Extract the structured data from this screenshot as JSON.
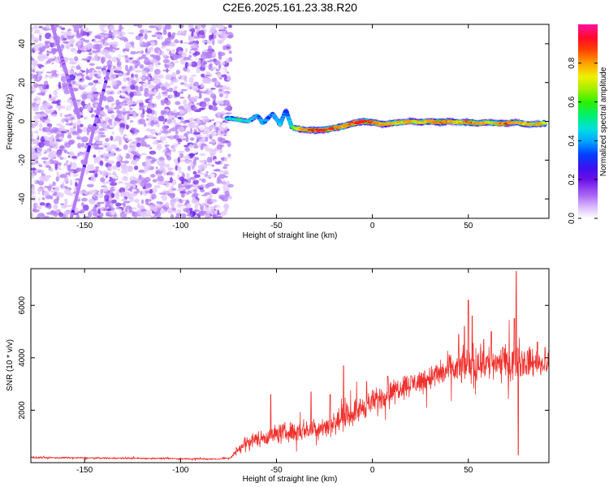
{
  "title": "C2E6.2025.161.23.38.R20",
  "colors": {
    "snr_line": "#f0302c",
    "background": "#ffffff",
    "axis": "#000000",
    "colormap": [
      "#ffffff",
      "#e0c6ff",
      "#b27cf6",
      "#7a2ce6",
      "#4b10e8",
      "#0a32ff",
      "#00b2ff",
      "#00e0d0",
      "#30f030",
      "#c8f000",
      "#ff9a00",
      "#ff2020",
      "#ff1090"
    ]
  },
  "chart_data": [
    {
      "type": "heatmap",
      "xlabel": "Height of straight line (km)",
      "ylabel": "Frequency (Hz)",
      "xlim": [
        -178,
        92
      ],
      "ylim": [
        -50,
        50
      ],
      "xticks": [
        -150,
        -100,
        -50,
        0,
        50
      ],
      "yticks": [
        -40,
        -20,
        0,
        20,
        40
      ],
      "colorbar": {
        "label": "Normalized spectral amplitude",
        "range": [
          0,
          1
        ],
        "ticks": [
          0.0,
          0.2,
          0.4,
          0.6,
          0.8
        ]
      },
      "noise_region": {
        "x_range": [
          -178,
          -74
        ],
        "y_range": [
          -50,
          50
        ],
        "amplitude": 0.12
      },
      "diagonal_streaks": [
        {
          "from": [
            -167,
            50
          ],
          "to": [
            -158,
            20
          ],
          "amplitude": 0.2
        },
        {
          "from": [
            -158,
            20
          ],
          "to": [
            -153,
            2
          ],
          "amplitude": 0.2
        },
        {
          "from": [
            -137,
            28
          ],
          "to": [
            -157,
            -50
          ],
          "amplitude": 0.22
        }
      ],
      "ridge": [
        [
          -76,
          1.5,
          0.55
        ],
        [
          -70,
          1.0,
          0.6
        ],
        [
          -65,
          0.0,
          0.55
        ],
        [
          -60,
          3.0,
          0.5
        ],
        [
          -57,
          -1.0,
          0.5
        ],
        [
          -52,
          4.0,
          0.45
        ],
        [
          -48,
          -1.5,
          0.55
        ],
        [
          -45,
          6.0,
          0.4
        ],
        [
          -42,
          -3.0,
          0.6
        ],
        [
          -38,
          -4.0,
          0.75
        ],
        [
          -32,
          -4.5,
          0.85
        ],
        [
          -26,
          -4.5,
          0.9
        ],
        [
          -20,
          -3.5,
          0.85
        ],
        [
          -15,
          -2.5,
          0.8
        ],
        [
          -10,
          -1.0,
          0.85
        ],
        [
          -5,
          0.0,
          0.9
        ],
        [
          0,
          -0.5,
          0.85
        ],
        [
          5,
          -1.5,
          0.8
        ],
        [
          10,
          -1.0,
          0.8
        ],
        [
          15,
          -0.5,
          0.75
        ],
        [
          20,
          0.0,
          0.8
        ],
        [
          25,
          -0.5,
          0.75
        ],
        [
          30,
          0.0,
          0.8
        ],
        [
          35,
          -0.5,
          0.85
        ],
        [
          40,
          0.0,
          0.8
        ],
        [
          45,
          -0.5,
          0.75
        ],
        [
          50,
          -0.5,
          0.85
        ],
        [
          55,
          -1.0,
          0.8
        ],
        [
          60,
          -0.5,
          0.75
        ],
        [
          65,
          -1.0,
          0.8
        ],
        [
          70,
          -1.0,
          0.85
        ],
        [
          75,
          -0.5,
          0.8
        ],
        [
          80,
          -1.5,
          0.75
        ],
        [
          85,
          -1.5,
          0.8
        ],
        [
          90,
          -1.0,
          0.75
        ]
      ]
    },
    {
      "type": "line",
      "xlabel": "Height of straight line (km)",
      "ylabel": "SNR (10 * v/v)",
      "xlim": [
        -178,
        92
      ],
      "ylim": [
        0,
        7400
      ],
      "xticks": [
        -150,
        -100,
        -50,
        0,
        50
      ],
      "yticks": [
        2000,
        4000,
        6000
      ],
      "series": [
        {
          "values": {
            "x": [
              -178,
              -170,
              -160,
              -150,
              -140,
              -130,
              -120,
              -110,
              -100,
              -90,
              -80,
              -74,
              -70,
              -65,
              -60,
              -55,
              -50,
              -45,
              -40,
              -35,
              -30,
              -25,
              -20,
              -15,
              -10,
              -5,
              0,
              5,
              10,
              15,
              20,
              25,
              30,
              35,
              40,
              45,
              50,
              55,
              60,
              65,
              70,
              75,
              80,
              85,
              90
            ],
            "y": [
              200,
              190,
              185,
              180,
              175,
              170,
              165,
              160,
              150,
              145,
              140,
              180,
              500,
              800,
              900,
              1000,
              1100,
              1150,
              1200,
              1250,
              1300,
              1400,
              1500,
              1700,
              1900,
              2100,
              2300,
              2500,
              2700,
              2900,
              3000,
              3100,
              3250,
              3400,
              3500,
              3600,
              3700,
              3750,
              3800,
              3850,
              3800,
              3900,
              3850,
              3800,
              3700
            ]
          },
          "noise": {
            "x": [
              -178,
              -74,
              -70,
              -50,
              -30,
              -10,
              10,
              30,
              45,
              55,
              65,
              75,
              92
            ],
            "amplitude": [
              50,
              50,
              300,
              550,
              600,
              700,
              650,
              700,
              900,
              1200,
              900,
              1000,
              600
            ]
          },
          "spikes": [
            [
              -75,
              120
            ],
            [
              -53,
              2600
            ],
            [
              -32,
              2700
            ],
            [
              -22,
              2600
            ],
            [
              -15,
              3700
            ],
            [
              -3,
              3100
            ],
            [
              8,
              3300
            ],
            [
              40,
              4100
            ],
            [
              45,
              4900
            ],
            [
              48,
              5200
            ],
            [
              50,
              6200
            ],
            [
              52,
              5600
            ],
            [
              58,
              4700
            ],
            [
              62,
              5000
            ],
            [
              68,
              4400
            ],
            [
              74,
              5500
            ],
            [
              75,
              7300
            ],
            [
              76,
              300
            ],
            [
              80,
              3700
            ],
            [
              86,
              4600
            ],
            [
              90,
              4400
            ]
          ]
        }
      ]
    }
  ]
}
